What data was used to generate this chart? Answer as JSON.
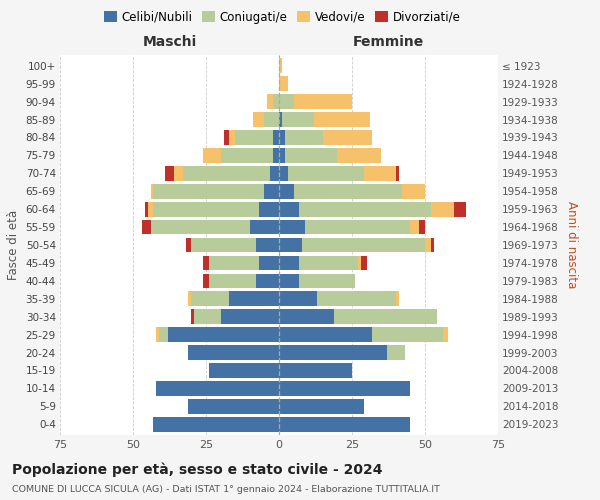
{
  "age_groups": [
    "0-4",
    "5-9",
    "10-14",
    "15-19",
    "20-24",
    "25-29",
    "30-34",
    "35-39",
    "40-44",
    "45-49",
    "50-54",
    "55-59",
    "60-64",
    "65-69",
    "70-74",
    "75-79",
    "80-84",
    "85-89",
    "90-94",
    "95-99",
    "100+"
  ],
  "birth_years": [
    "2019-2023",
    "2014-2018",
    "2009-2013",
    "2004-2008",
    "1999-2003",
    "1994-1998",
    "1989-1993",
    "1984-1988",
    "1979-1983",
    "1974-1978",
    "1969-1973",
    "1964-1968",
    "1959-1963",
    "1954-1958",
    "1949-1953",
    "1944-1948",
    "1939-1943",
    "1934-1938",
    "1929-1933",
    "1924-1928",
    "≤ 1923"
  ],
  "maschi": {
    "celibi": [
      43,
      31,
      42,
      24,
      31,
      38,
      20,
      17,
      8,
      7,
      8,
      10,
      7,
      5,
      3,
      2,
      2,
      0,
      0,
      0,
      0
    ],
    "coniugati": [
      0,
      0,
      0,
      0,
      0,
      3,
      9,
      13,
      16,
      17,
      22,
      34,
      36,
      38,
      30,
      18,
      13,
      5,
      2,
      0,
      0
    ],
    "vedovi": [
      0,
      0,
      0,
      0,
      0,
      1,
      0,
      1,
      0,
      0,
      0,
      0,
      2,
      1,
      3,
      6,
      2,
      4,
      2,
      0,
      0
    ],
    "divorziati": [
      0,
      0,
      0,
      0,
      0,
      0,
      1,
      0,
      2,
      2,
      2,
      3,
      1,
      0,
      3,
      0,
      2,
      0,
      0,
      0,
      0
    ]
  },
  "femmine": {
    "nubili": [
      45,
      29,
      45,
      25,
      37,
      32,
      19,
      13,
      7,
      7,
      8,
      9,
      7,
      5,
      3,
      2,
      2,
      1,
      0,
      0,
      0
    ],
    "coniugate": [
      0,
      0,
      0,
      0,
      6,
      24,
      35,
      27,
      19,
      20,
      42,
      36,
      45,
      37,
      26,
      18,
      13,
      11,
      5,
      0,
      0
    ],
    "vedove": [
      0,
      0,
      0,
      0,
      0,
      2,
      0,
      1,
      0,
      1,
      2,
      3,
      8,
      8,
      11,
      15,
      17,
      19,
      20,
      3,
      1
    ],
    "divorziate": [
      0,
      0,
      0,
      0,
      0,
      0,
      0,
      0,
      0,
      2,
      1,
      2,
      4,
      0,
      1,
      0,
      0,
      0,
      0,
      0,
      0
    ]
  },
  "colors": {
    "celibi": "#4472a4",
    "coniugati": "#b8cc9b",
    "vedovi": "#f5c26b",
    "divorziati": "#c0302a"
  },
  "xlim": 75,
  "xlabel_left": "Maschi",
  "xlabel_right": "Femmine",
  "ylabel_left": "Fasce di età",
  "ylabel_right": "Anni di nascita",
  "title": "Popolazione per età, sesso e stato civile - 2024",
  "subtitle": "COMUNE DI LUCCA SICULA (AG) - Dati ISTAT 1° gennaio 2024 - Elaborazione TUTTITALIA.IT",
  "legend_labels": [
    "Celibi/Nubili",
    "Coniugati/e",
    "Vedovi/e",
    "Divorziati/e"
  ],
  "bg_color": "#f5f5f5",
  "plot_bg_color": "#ffffff"
}
